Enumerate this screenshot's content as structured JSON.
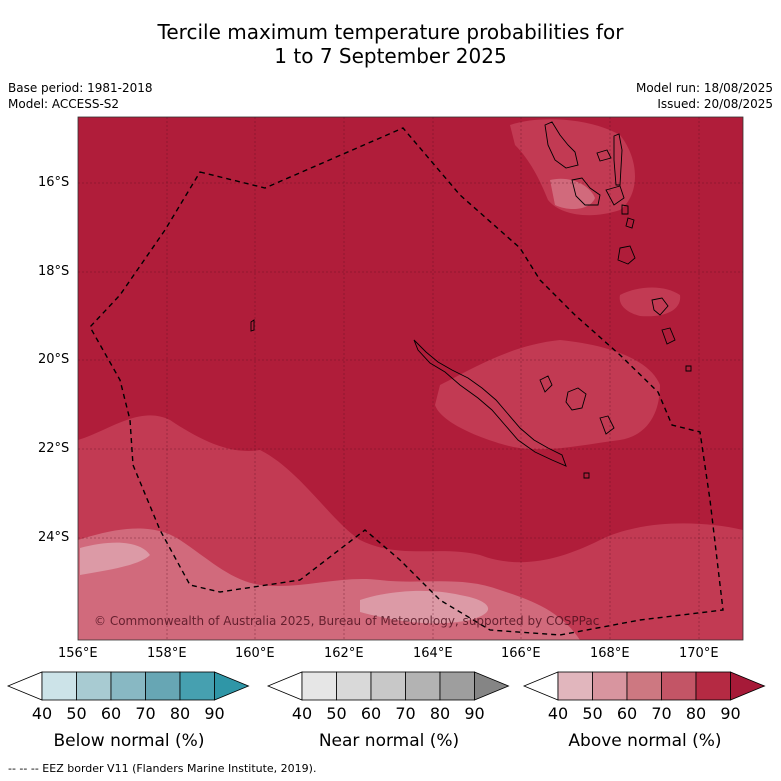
{
  "title": {
    "line1": "Tercile maximum temperature probabilities for",
    "line2": "1 to 7 September 2025"
  },
  "meta": {
    "base_period": "Base period: 1981-2018",
    "model": "Model: ACCESS-S2",
    "model_run": "Model run: 18/08/2025",
    "issued": "Issued: 20/08/2025"
  },
  "map": {
    "copyright": "© Commonwealth of Australia 2025, Bureau of Meteorology, supported by COSPPac",
    "lat_ticks": [
      "16°S",
      "18°S",
      "20°S",
      "22°S",
      "24°S"
    ],
    "lon_ticks": [
      "156°E",
      "158°E",
      "160°E",
      "162°E",
      "164°E",
      "166°E",
      "168°E",
      "170°E"
    ],
    "colors": {
      "dominant": "#b01d3a",
      "level_70_80": "#c23a53",
      "level_60_70": "#d16a7c",
      "level_50_60": "#dc9aa6",
      "eez": "#000000"
    }
  },
  "colorbars": [
    {
      "label": "Below normal (%)",
      "ticks": [
        "40",
        "50",
        "60",
        "70",
        "80",
        "90"
      ],
      "colors": [
        "#ffffff",
        "#cce3e8",
        "#a8cbd2",
        "#88b8c3",
        "#67a6b4",
        "#46a0b0",
        "#2f96a7"
      ]
    },
    {
      "label": "Near normal (%)",
      "ticks": [
        "40",
        "50",
        "60",
        "70",
        "80",
        "90"
      ],
      "colors": [
        "#ffffff",
        "#e6e6e6",
        "#d9d9d9",
        "#c8c8c8",
        "#b3b3b3",
        "#9e9e9e",
        "#858585"
      ]
    },
    {
      "label": "Above normal (%)",
      "ticks": [
        "40",
        "50",
        "60",
        "70",
        "80",
        "90"
      ],
      "colors": [
        "#ffffff",
        "#e1b6bd",
        "#d8959f",
        "#cd7881",
        "#c35566",
        "#b52a43",
        "#a61a38"
      ]
    }
  ],
  "footer": "-- -- -- EEZ border V11 (Flanders Marine Institute, 2019)."
}
